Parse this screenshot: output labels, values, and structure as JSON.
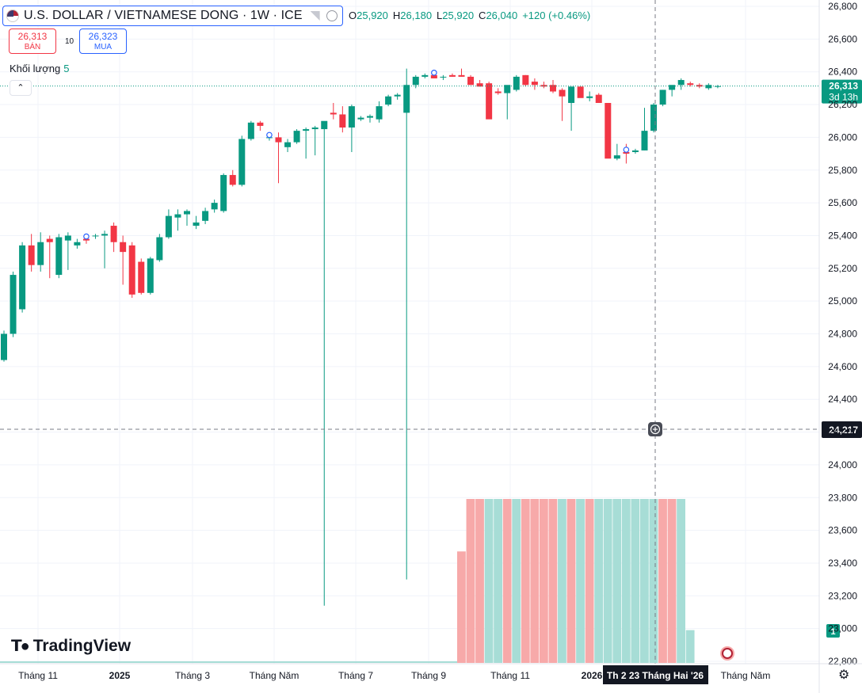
{
  "header": {
    "title": "U.S. DOLLAR / VIETNAMESE DONG · 1W · ICE",
    "ohlc": [
      {
        "k": "O",
        "v": "25,920"
      },
      {
        "k": "H",
        "v": "26,180"
      },
      {
        "k": "L",
        "v": "25,920"
      },
      {
        "k": "C",
        "v": "26,040"
      }
    ],
    "change": "+120 (+0.46%)"
  },
  "trade": {
    "sell_price": "26,313",
    "sell_label": "BÁN",
    "quantity": "10",
    "buy_price": "26,323",
    "buy_label": "MUA"
  },
  "volume_legend": {
    "label": "Khối lượng",
    "value": "5"
  },
  "brand": "TradingView",
  "icons": {
    "flag": "us-flag-icon",
    "collapse": "chevron-up-icon",
    "settings": "gear-icon",
    "crosshair": "crosshair-plus-icon"
  },
  "colors": {
    "up": "#089981",
    "down": "#f23645",
    "vol_up": "#a7ddd6",
    "vol_down": "#f7a9a9",
    "grid": "#f0f3fa"
  },
  "chart_data": {
    "type": "candlestick",
    "timeframe": "1W",
    "ylim": [
      22800,
      26800
    ],
    "y_ticks": [
      "22,800",
      "23,000",
      "23,200",
      "23,400",
      "23,600",
      "23,800",
      "24,000",
      "24,200",
      "24,400",
      "24,600",
      "24,800",
      "25,000",
      "25,200",
      "25,400",
      "25,600",
      "25,800",
      "26,000",
      "26,200",
      "26,400",
      "26,600",
      "26,800"
    ],
    "x_ticks": [
      "Tháng 11",
      "2025",
      "Tháng 3",
      "Tháng Năm",
      "Tháng 7",
      "Tháng 9",
      "Tháng 11",
      "2026",
      "Tháng Năm"
    ],
    "last_price": {
      "value": 26313,
      "label": "26,313",
      "countdown": "3d 13h"
    },
    "crosshair": {
      "price": 24217,
      "price_label": "24,217",
      "date_label": "Th 2 23 Tháng Hai '26"
    },
    "candles": [
      [
        24640,
        24820,
        24630,
        24800
      ],
      [
        24800,
        25180,
        24780,
        25160
      ],
      [
        24950,
        25360,
        24930,
        25340
      ],
      [
        25340,
        25410,
        25180,
        25220
      ],
      [
        25220,
        25420,
        25180,
        25360
      ],
      [
        25380,
        25400,
        25140,
        25360
      ],
      [
        25160,
        25410,
        25140,
        25390
      ],
      [
        25370,
        25420,
        25190,
        25400
      ],
      [
        25340,
        25380,
        25320,
        25360
      ],
      [
        25380,
        25400,
        25350,
        25370
      ],
      [
        25400,
        25410,
        25380,
        25400
      ],
      [
        25400,
        25430,
        25200,
        25410
      ],
      [
        25460,
        25480,
        25300,
        25360
      ],
      [
        25360,
        25400,
        25100,
        25300
      ],
      [
        25340,
        25360,
        25020,
        25040
      ],
      [
        25240,
        25260,
        25040,
        25050
      ],
      [
        25050,
        25270,
        25040,
        25260
      ],
      [
        25250,
        25410,
        25240,
        25390
      ],
      [
        25390,
        25560,
        25380,
        25520
      ],
      [
        25510,
        25560,
        25430,
        25530
      ],
      [
        25530,
        25560,
        25460,
        25550
      ],
      [
        25460,
        25520,
        25440,
        25480
      ],
      [
        25490,
        25570,
        25470,
        25550
      ],
      [
        25560,
        25620,
        25540,
        25600
      ],
      [
        25550,
        25780,
        25540,
        25770
      ],
      [
        25770,
        25800,
        25700,
        25710
      ],
      [
        25710,
        26010,
        25700,
        25990
      ],
      [
        25990,
        26100,
        25980,
        26090
      ],
      [
        26090,
        26100,
        26040,
        26070
      ],
      [
        26000,
        26020,
        25980,
        26000
      ],
      [
        26000,
        26030,
        25720,
        25970
      ],
      [
        25940,
        25990,
        25910,
        25970
      ],
      [
        25970,
        26050,
        25960,
        26040
      ],
      [
        26040,
        26060,
        25870,
        26050
      ],
      [
        26050,
        26070,
        25890,
        26060
      ],
      [
        26050,
        26080,
        23140,
        26100
      ],
      [
        26150,
        26210,
        26110,
        26140
      ],
      [
        26140,
        26190,
        26030,
        26060
      ],
      [
        26060,
        26200,
        25910,
        26190
      ],
      [
        26110,
        26130,
        26100,
        26120
      ],
      [
        26120,
        26140,
        26090,
        26130
      ],
      [
        26110,
        26220,
        26090,
        26190
      ],
      [
        26200,
        26260,
        26190,
        26250
      ],
      [
        26250,
        26270,
        26230,
        26260
      ],
      [
        26150,
        26420,
        23300,
        26320
      ],
      [
        26320,
        26380,
        26300,
        26370
      ],
      [
        26370,
        26390,
        26360,
        26380
      ],
      [
        26380,
        26390,
        26370,
        26360
      ],
      [
        26370,
        26380,
        26350,
        26370
      ],
      [
        26380,
        26390,
        26370,
        26370
      ],
      [
        26380,
        26420,
        26370,
        26370
      ],
      [
        26370,
        26380,
        26320,
        26320
      ],
      [
        26330,
        26350,
        26310,
        26310
      ],
      [
        26330,
        26340,
        26120,
        26110
      ],
      [
        26280,
        26300,
        26260,
        26270
      ],
      [
        26270,
        26300,
        26110,
        26320
      ],
      [
        26290,
        26380,
        26280,
        26370
      ],
      [
        26380,
        26380,
        26310,
        26320
      ],
      [
        26340,
        26360,
        26290,
        26320
      ],
      [
        26320,
        26340,
        26300,
        26310
      ],
      [
        26320,
        26350,
        26270,
        26280
      ],
      [
        26290,
        26300,
        26100,
        26250
      ],
      [
        26210,
        26300,
        26040,
        26310
      ],
      [
        26310,
        26310,
        26250,
        26240
      ],
      [
        26240,
        26280,
        26220,
        26250
      ],
      [
        26260,
        26270,
        26220,
        26210
      ],
      [
        26210,
        26210,
        25880,
        25870
      ],
      [
        25870,
        25960,
        25860,
        25890
      ],
      [
        25910,
        25960,
        25840,
        25900
      ],
      [
        25910,
        25930,
        25900,
        25920
      ],
      [
        25920,
        26180,
        25920,
        26040
      ],
      [
        26040,
        26210,
        26030,
        26200
      ],
      [
        26200,
        26290,
        26190,
        26290
      ],
      [
        26290,
        26310,
        26250,
        26320
      ],
      [
        26320,
        26360,
        26290,
        26350
      ],
      [
        26330,
        26340,
        26310,
        26320
      ],
      [
        26320,
        26330,
        26300,
        26310
      ],
      [
        26300,
        26330,
        26290,
        26320
      ],
      [
        26310,
        26320,
        26300,
        26313
      ]
    ],
    "dividend_markers": [
      9,
      29,
      47,
      68
    ],
    "volume": {
      "scale_label": "1",
      "bars": [
        {
          "i": 50,
          "v": 0.68,
          "up": false
        },
        {
          "i": 51,
          "v": 1,
          "up": false
        },
        {
          "i": 52,
          "v": 1,
          "up": false
        },
        {
          "i": 53,
          "v": 1,
          "up": true
        },
        {
          "i": 54,
          "v": 1,
          "up": true
        },
        {
          "i": 55,
          "v": 1,
          "up": false
        },
        {
          "i": 56,
          "v": 1,
          "up": true
        },
        {
          "i": 57,
          "v": 1,
          "up": false
        },
        {
          "i": 58,
          "v": 1,
          "up": false
        },
        {
          "i": 59,
          "v": 1,
          "up": false
        },
        {
          "i": 60,
          "v": 1,
          "up": false
        },
        {
          "i": 61,
          "v": 1,
          "up": true
        },
        {
          "i": 62,
          "v": 1,
          "up": false
        },
        {
          "i": 63,
          "v": 1,
          "up": true
        },
        {
          "i": 64,
          "v": 1,
          "up": false
        },
        {
          "i": 65,
          "v": 1,
          "up": true
        },
        {
          "i": 66,
          "v": 1,
          "up": true
        },
        {
          "i": 67,
          "v": 1,
          "up": true
        },
        {
          "i": 68,
          "v": 1,
          "up": true
        },
        {
          "i": 69,
          "v": 1,
          "up": true
        },
        {
          "i": 70,
          "v": 1,
          "up": true
        },
        {
          "i": 71,
          "v": 1,
          "up": true
        },
        {
          "i": 72,
          "v": 1,
          "up": false
        },
        {
          "i": 73,
          "v": 1,
          "up": false
        },
        {
          "i": 74,
          "v": 1,
          "up": true
        },
        {
          "i": 75,
          "v": 0.2,
          "up": true
        }
      ]
    }
  }
}
